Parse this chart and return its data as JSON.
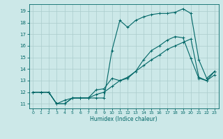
{
  "xlabel": "Humidex (Indice chaleur)",
  "bg_color": "#cce8e8",
  "grid_color": "#aacccc",
  "line_color": "#006666",
  "xlim": [
    -0.5,
    23.5
  ],
  "ylim": [
    10.6,
    19.6
  ],
  "xticks": [
    0,
    1,
    2,
    3,
    4,
    5,
    6,
    7,
    8,
    9,
    10,
    11,
    12,
    13,
    14,
    15,
    16,
    17,
    18,
    19,
    20,
    21,
    22,
    23
  ],
  "yticks": [
    11,
    12,
    13,
    14,
    15,
    16,
    17,
    18,
    19
  ],
  "series": [
    {
      "x": [
        0,
        1,
        2,
        3,
        4,
        5,
        6,
        7,
        8,
        9,
        10,
        11,
        12,
        13,
        14,
        15,
        16,
        17,
        18,
        19,
        20,
        21,
        22,
        23
      ],
      "y": [
        12,
        12,
        12,
        11,
        11,
        11.5,
        11.5,
        11.5,
        12.2,
        12.3,
        13.2,
        13.0,
        13.2,
        13.8,
        14.8,
        15.6,
        16.0,
        16.5,
        16.8,
        16.7,
        14.9,
        13.2,
        13.0,
        13.8
      ]
    },
    {
      "x": [
        0,
        1,
        2,
        3,
        4,
        5,
        6,
        7,
        8,
        9,
        10,
        11,
        12,
        13,
        14,
        15,
        16,
        17,
        18,
        19,
        20,
        21,
        22,
        23
      ],
      "y": [
        12,
        12,
        12,
        11,
        11.3,
        11.5,
        11.5,
        11.5,
        11.8,
        12.0,
        12.5,
        13.0,
        13.3,
        13.8,
        14.3,
        14.8,
        15.2,
        15.7,
        16.0,
        16.3,
        16.6,
        13.3,
        13.0,
        13.5
      ]
    },
    {
      "x": [
        0,
        1,
        2,
        3,
        4,
        5,
        6,
        7,
        8,
        9,
        10,
        11,
        12,
        13,
        14,
        15,
        16,
        17,
        18,
        19,
        20,
        21,
        22,
        23
      ],
      "y": [
        12,
        12,
        12,
        11,
        11,
        11.5,
        11.5,
        11.5,
        11.5,
        11.5,
        15.6,
        18.2,
        17.6,
        18.2,
        18.5,
        18.7,
        18.8,
        18.8,
        18.9,
        19.2,
        18.8,
        14.8,
        13.2,
        13.8
      ]
    }
  ]
}
